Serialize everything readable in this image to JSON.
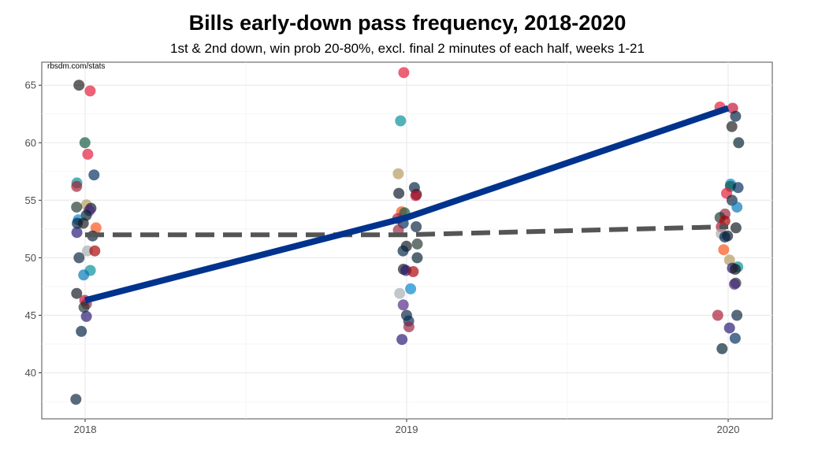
{
  "chart_data": {
    "type": "scatter",
    "title": "Bills early-down pass frequency, 2018-2020",
    "subtitle": "1st & 2nd down, win prob 20-80%, excl. final 2 minutes of each half, weeks 1-21",
    "source": "rbsdm.com/stats",
    "x_categories": [
      "2018",
      "2019",
      "2020"
    ],
    "ylim": [
      36,
      67
    ],
    "yticks": [
      40,
      45,
      50,
      55,
      60,
      65
    ],
    "grid": true,
    "legend": "none",
    "lines": [
      {
        "style": "dashed",
        "color": "#555555",
        "values": [
          52.0,
          52.0,
          52.7
        ]
      },
      {
        "style": "solid",
        "color": "#00338D",
        "values": [
          46.3,
          53.5,
          63.0
        ]
      }
    ],
    "points": [
      {
        "x": 2018,
        "y": 65.0,
        "color": "#1a1a1a"
      },
      {
        "x": 2018,
        "y": 64.5,
        "color": "#E31837"
      },
      {
        "x": 2018,
        "y": 60.0,
        "color": "#125740"
      },
      {
        "x": 2018,
        "y": 59.0,
        "color": "#E31837"
      },
      {
        "x": 2018,
        "y": 57.2,
        "color": "#002C5F"
      },
      {
        "x": 2018,
        "y": 56.5,
        "color": "#008E97"
      },
      {
        "x": 2018,
        "y": 56.2,
        "color": "#A71930"
      },
      {
        "x": 2018,
        "y": 54.6,
        "color": "#B3995D"
      },
      {
        "x": 2018,
        "y": 54.4,
        "color": "#203731"
      },
      {
        "x": 2018,
        "y": 54.3,
        "color": "#0B162A"
      },
      {
        "x": 2018,
        "y": 54.1,
        "color": "#4F2683"
      },
      {
        "x": 2018,
        "y": 53.7,
        "color": "#03202F"
      },
      {
        "x": 2018,
        "y": 53.3,
        "color": "#0085CA"
      },
      {
        "x": 2018,
        "y": 53.0,
        "color": "#002244"
      },
      {
        "x": 2018,
        "y": 53.0,
        "color": "#1a1a1a"
      },
      {
        "x": 2018,
        "y": 52.6,
        "color": "#FB4F14"
      },
      {
        "x": 2018,
        "y": 52.2,
        "color": "#241773"
      },
      {
        "x": 2018,
        "y": 51.9,
        "color": "#002244"
      },
      {
        "x": 2018,
        "y": 50.6,
        "color": "#A5ACAF"
      },
      {
        "x": 2018,
        "y": 50.6,
        "color": "#AA0000"
      },
      {
        "x": 2018,
        "y": 50.0,
        "color": "#0C2340"
      },
      {
        "x": 2018,
        "y": 48.9,
        "color": "#008E97"
      },
      {
        "x": 2018,
        "y": 48.5,
        "color": "#0076B6"
      },
      {
        "x": 2018,
        "y": 46.9,
        "color": "#101820"
      },
      {
        "x": 2018,
        "y": 46.3,
        "color": "#C60C30"
      },
      {
        "x": 2018,
        "y": 46.0,
        "color": "#97233F"
      },
      {
        "x": 2018,
        "y": 45.7,
        "color": "#203731"
      },
      {
        "x": 2018,
        "y": 44.9,
        "color": "#241773"
      },
      {
        "x": 2018,
        "y": 43.6,
        "color": "#002244"
      },
      {
        "x": 2018,
        "y": 37.7,
        "color": "#0C2340"
      },
      {
        "x": 2019,
        "y": 66.1,
        "color": "#E31837"
      },
      {
        "x": 2019,
        "y": 61.9,
        "color": "#008E97"
      },
      {
        "x": 2019,
        "y": 57.3,
        "color": "#B3995D"
      },
      {
        "x": 2019,
        "y": 56.1,
        "color": "#002244"
      },
      {
        "x": 2019,
        "y": 55.6,
        "color": "#0B162A"
      },
      {
        "x": 2019,
        "y": 55.5,
        "color": "#1a1a1a"
      },
      {
        "x": 2019,
        "y": 55.4,
        "color": "#C60C30"
      },
      {
        "x": 2019,
        "y": 54.0,
        "color": "#FB4F14"
      },
      {
        "x": 2019,
        "y": 53.9,
        "color": "#125740"
      },
      {
        "x": 2019,
        "y": 53.4,
        "color": "#A71930"
      },
      {
        "x": 2019,
        "y": 53.0,
        "color": "#002C5F"
      },
      {
        "x": 2019,
        "y": 52.7,
        "color": "#0C2340"
      },
      {
        "x": 2019,
        "y": 52.4,
        "color": "#97233F"
      },
      {
        "x": 2019,
        "y": 51.2,
        "color": "#203731"
      },
      {
        "x": 2019,
        "y": 51.0,
        "color": "#101820"
      },
      {
        "x": 2019,
        "y": 50.6,
        "color": "#002244"
      },
      {
        "x": 2019,
        "y": 50.0,
        "color": "#03202F"
      },
      {
        "x": 2019,
        "y": 49.0,
        "color": "#1a1a1a"
      },
      {
        "x": 2019,
        "y": 48.9,
        "color": "#241773"
      },
      {
        "x": 2019,
        "y": 48.8,
        "color": "#AA0000"
      },
      {
        "x": 2019,
        "y": 47.3,
        "color": "#0085CA"
      },
      {
        "x": 2019,
        "y": 46.9,
        "color": "#A5ACAF"
      },
      {
        "x": 2019,
        "y": 45.9,
        "color": "#4F2683"
      },
      {
        "x": 2019,
        "y": 45.0,
        "color": "#0C2340"
      },
      {
        "x": 2019,
        "y": 44.5,
        "color": "#002C5F"
      },
      {
        "x": 2019,
        "y": 44.0,
        "color": "#97233F"
      },
      {
        "x": 2019,
        "y": 42.9,
        "color": "#241773"
      },
      {
        "x": 2020,
        "y": 63.1,
        "color": "#E31837"
      },
      {
        "x": 2020,
        "y": 63.0,
        "color": "#C60C30"
      },
      {
        "x": 2020,
        "y": 62.3,
        "color": "#002244"
      },
      {
        "x": 2020,
        "y": 61.4,
        "color": "#1a1a1a"
      },
      {
        "x": 2020,
        "y": 60.0,
        "color": "#03202F"
      },
      {
        "x": 2020,
        "y": 56.4,
        "color": "#0085CA"
      },
      {
        "x": 2020,
        "y": 56.2,
        "color": "#125740"
      },
      {
        "x": 2020,
        "y": 56.1,
        "color": "#002C5F"
      },
      {
        "x": 2020,
        "y": 55.6,
        "color": "#E31837"
      },
      {
        "x": 2020,
        "y": 55.0,
        "color": "#0C2340"
      },
      {
        "x": 2020,
        "y": 54.4,
        "color": "#0076B6"
      },
      {
        "x": 2020,
        "y": 53.8,
        "color": "#97233F"
      },
      {
        "x": 2020,
        "y": 53.5,
        "color": "#203731"
      },
      {
        "x": 2020,
        "y": 53.2,
        "color": "#AA0000"
      },
      {
        "x": 2020,
        "y": 52.7,
        "color": "#A71930"
      },
      {
        "x": 2020,
        "y": 52.6,
        "color": "#101820"
      },
      {
        "x": 2020,
        "y": 52.1,
        "color": "#A5ACAF"
      },
      {
        "x": 2020,
        "y": 51.9,
        "color": "#0B162A"
      },
      {
        "x": 2020,
        "y": 51.8,
        "color": "#002244"
      },
      {
        "x": 2020,
        "y": 50.7,
        "color": "#FB4F14"
      },
      {
        "x": 2020,
        "y": 49.8,
        "color": "#B3995D"
      },
      {
        "x": 2020,
        "y": 49.2,
        "color": "#008E97"
      },
      {
        "x": 2020,
        "y": 49.1,
        "color": "#241773"
      },
      {
        "x": 2020,
        "y": 49.0,
        "color": "#1a1a1a"
      },
      {
        "x": 2020,
        "y": 47.8,
        "color": "#203731"
      },
      {
        "x": 2020,
        "y": 47.7,
        "color": "#4F2683"
      },
      {
        "x": 2020,
        "y": 45.0,
        "color": "#A71930"
      },
      {
        "x": 2020,
        "y": 45.0,
        "color": "#0C2340"
      },
      {
        "x": 2020,
        "y": 43.9,
        "color": "#241773"
      },
      {
        "x": 2020,
        "y": 43.0,
        "color": "#002C5F"
      },
      {
        "x": 2020,
        "y": 42.1,
        "color": "#03202F"
      }
    ]
  }
}
